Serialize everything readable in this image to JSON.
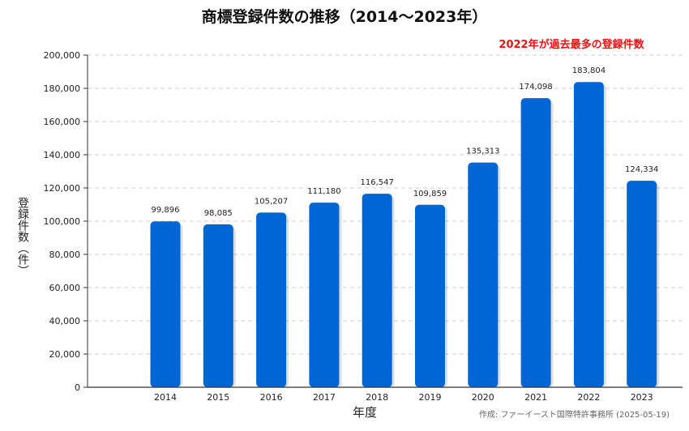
{
  "chart_data": {
    "type": "bar",
    "title": "商標登録件数の推移（2014〜2023年）",
    "annotation": "2022年が過去最多の登録件数",
    "xlabel": "年度",
    "ylabel": "登録件数（件）",
    "credit": "作成: ファーイースト国際特許事務所 (2025-05-19)",
    "categories": [
      "2014",
      "2015",
      "2016",
      "2017",
      "2018",
      "2019",
      "2020",
      "2021",
      "2022",
      "2023"
    ],
    "values": [
      99896,
      98085,
      105207,
      111180,
      116547,
      109859,
      135313,
      174098,
      183804,
      124334
    ],
    "value_labels": [
      "99,896",
      "98,085",
      "105,207",
      "111,180",
      "116,547",
      "109,859",
      "135,313",
      "174,098",
      "183,804",
      "124,334"
    ],
    "ylim": [
      0,
      200000
    ],
    "yticks": [
      "0",
      "20,000",
      "40,000",
      "60,000",
      "80,000",
      "100,000",
      "120,000",
      "140,000",
      "160,000",
      "180,000",
      "200,000"
    ],
    "grid": true,
    "bar_color": "#0066d6"
  }
}
